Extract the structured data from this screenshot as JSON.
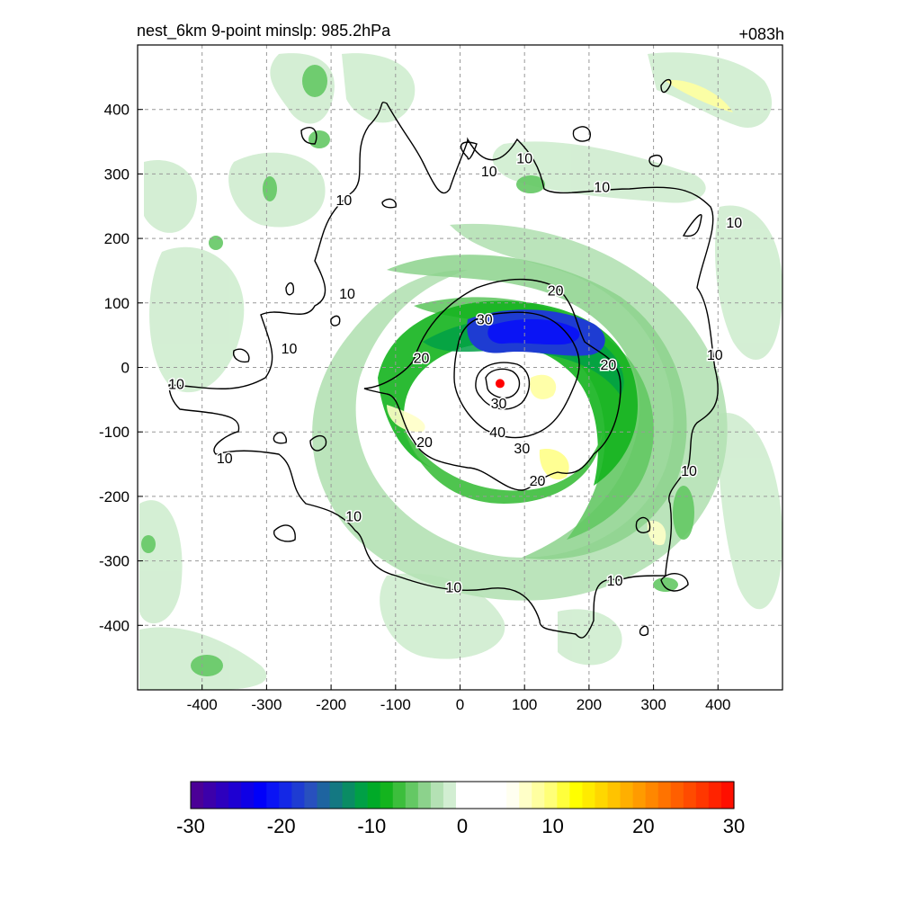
{
  "header": {
    "title_left": "nest_6km  9-point minslp: 985.2hPa",
    "title_right": "+083h"
  },
  "chart_data": {
    "type": "heatmap",
    "title": "nest_6km  9-point minslp: 985.2hPa",
    "lead_time": "+083h",
    "xlim": [
      -500,
      500
    ],
    "ylim": [
      -500,
      500
    ],
    "x_ticks": [
      -400,
      -300,
      -200,
      -100,
      0,
      100,
      200,
      300,
      400
    ],
    "y_ticks": [
      400,
      300,
      200,
      100,
      0,
      -100,
      -200,
      -300,
      -400
    ],
    "grid": true,
    "grid_style": "dashed",
    "center_marker": {
      "x": 62,
      "y": -25,
      "color": "#ff0000"
    },
    "contour_lines": {
      "levels": [
        10,
        20,
        30,
        40
      ],
      "labels": [
        {
          "text": "10",
          "x": 100,
          "y": 325
        },
        {
          "text": "10",
          "x": -180,
          "y": 260
        },
        {
          "text": "10",
          "x": 45,
          "y": 305
        },
        {
          "text": "10",
          "x": 220,
          "y": 280
        },
        {
          "text": "10",
          "x": 425,
          "y": 225
        },
        {
          "text": "10",
          "x": -175,
          "y": 115
        },
        {
          "text": "10",
          "x": -265,
          "y": 30
        },
        {
          "text": "10",
          "x": -440,
          "y": -25
        },
        {
          "text": "10",
          "x": -365,
          "y": -140
        },
        {
          "text": "10",
          "x": -165,
          "y": -230
        },
        {
          "text": "10",
          "x": -10,
          "y": -340
        },
        {
          "text": "10",
          "x": 240,
          "y": -330
        },
        {
          "text": "10",
          "x": 355,
          "y": -160
        },
        {
          "text": "10",
          "x": 395,
          "y": 20
        },
        {
          "text": "20",
          "x": 148,
          "y": 120
        },
        {
          "text": "20",
          "x": -60,
          "y": 15
        },
        {
          "text": "20",
          "x": 230,
          "y": 5
        },
        {
          "text": "20",
          "x": -55,
          "y": -115
        },
        {
          "text": "20",
          "x": 120,
          "y": -175
        },
        {
          "text": "30",
          "x": 38,
          "y": 75
        },
        {
          "text": "30",
          "x": 60,
          "y": -55
        },
        {
          "text": "30",
          "x": 96,
          "y": -125
        },
        {
          "text": "40",
          "x": 58,
          "y": -100
        }
      ]
    },
    "colorbar": {
      "ticks": [
        -30,
        -20,
        -10,
        0,
        10,
        20,
        30
      ],
      "colors": [
        "#4b0096",
        "#3c00aa",
        "#2d00be",
        "#1e00d2",
        "#0f00e6",
        "#0000fa",
        "#0a14f5",
        "#1428e6",
        "#1e3cd2",
        "#2850be",
        "#1e64a0",
        "#147882",
        "#0a8c64",
        "#00a046",
        "#00aa28",
        "#14b41e",
        "#3cbe3c",
        "#64c864",
        "#8cd28c",
        "#b4e1b4",
        "#d2eed2",
        "#ffffff",
        "#ffffff",
        "#ffffff",
        "#ffffff",
        "#fffff0",
        "#ffffc8",
        "#ffffa0",
        "#ffff78",
        "#ffff3c",
        "#ffff00",
        "#ffeb00",
        "#ffd700",
        "#ffc300",
        "#ffaf00",
        "#ff9b00",
        "#ff8700",
        "#ff7300",
        "#ff5f00",
        "#ff4b00",
        "#ff3700",
        "#ff2300",
        "#ff0f00"
      ]
    }
  }
}
